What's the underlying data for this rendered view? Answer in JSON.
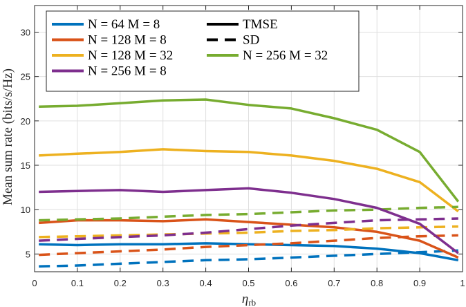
{
  "chart_data": {
    "type": "line",
    "title": "",
    "xlabel": "η",
    "xlabel_sub": "rb",
    "ylabel": "Mean sum rate (bits/s/Hz)",
    "xlim": [
      0,
      1
    ],
    "ylim": [
      3,
      33
    ],
    "xticks": [
      0,
      0.1,
      0.2,
      0.3,
      0.4,
      0.5,
      0.6,
      0.7,
      0.8,
      0.9,
      1
    ],
    "xtick_labels": [
      "0",
      "0.1",
      "0.2",
      "0.3",
      "0.4",
      "0.5",
      "0.6",
      "0.7",
      "0.8",
      "0.9",
      "1"
    ],
    "yticks": [
      5,
      10,
      15,
      20,
      25,
      30
    ],
    "ytick_labels": [
      "5",
      "10",
      "15",
      "20",
      "25",
      "30"
    ],
    "grid": true,
    "legend_position": "top-left",
    "x": [
      0.01,
      0.1,
      0.2,
      0.3,
      0.4,
      0.5,
      0.6,
      0.7,
      0.8,
      0.9,
      0.99
    ],
    "series": [
      {
        "name": "N = 64 M = 8",
        "method": "TMSE",
        "style": "solid",
        "color": "#0072BD",
        "values": [
          6.1,
          6.0,
          6.1,
          6.1,
          6.2,
          6.1,
          6.0,
          5.9,
          5.6,
          5.1,
          4.3
        ]
      },
      {
        "name": "N = 64 M = 8",
        "method": "SD",
        "style": "dashed",
        "color": "#0072BD",
        "values": [
          3.6,
          3.7,
          3.9,
          4.1,
          4.3,
          4.4,
          4.6,
          4.8,
          5.0,
          5.2,
          5.4
        ]
      },
      {
        "name": "N = 128 M = 8",
        "method": "TMSE",
        "style": "solid",
        "color": "#D95319",
        "values": [
          8.5,
          8.8,
          8.8,
          8.7,
          8.9,
          8.6,
          8.3,
          8.0,
          7.5,
          6.5,
          4.6
        ]
      },
      {
        "name": "N = 128 M = 8",
        "method": "SD",
        "style": "dashed",
        "color": "#D95319",
        "values": [
          4.9,
          5.1,
          5.3,
          5.5,
          5.8,
          6.0,
          6.2,
          6.5,
          6.8,
          7.0,
          7.1
        ]
      },
      {
        "name": "N = 128 M = 32",
        "method": "TMSE",
        "style": "solid",
        "color": "#EDB120",
        "values": [
          16.1,
          16.3,
          16.5,
          16.8,
          16.6,
          16.5,
          16.1,
          15.5,
          14.6,
          13.1,
          9.8
        ]
      },
      {
        "name": "N = 128 M = 32",
        "method": "SD",
        "style": "dashed",
        "color": "#EDB120",
        "values": [
          6.9,
          7.0,
          7.1,
          7.2,
          7.3,
          7.4,
          7.6,
          7.7,
          7.9,
          8.0,
          8.1
        ]
      },
      {
        "name": "N = 256 M = 32",
        "method": "TMSE",
        "style": "solid",
        "color": "#77AC30",
        "values": [
          21.6,
          21.7,
          22.0,
          22.3,
          22.4,
          21.8,
          21.4,
          20.3,
          19.0,
          16.5,
          10.9
        ]
      },
      {
        "name": "N = 256 M = 32",
        "method": "SD",
        "style": "dashed",
        "color": "#77AC30",
        "values": [
          8.8,
          8.9,
          9.0,
          9.2,
          9.4,
          9.5,
          9.7,
          9.9,
          10.0,
          10.2,
          10.3
        ]
      },
      {
        "name": "N = 256 M = 8",
        "method": "TMSE",
        "style": "solid",
        "color": "#7E2F8E",
        "values": [
          12.0,
          12.1,
          12.2,
          12.0,
          12.2,
          12.4,
          11.9,
          11.2,
          10.2,
          8.4,
          5.1
        ]
      },
      {
        "name": "N = 256 M = 8",
        "method": "SD",
        "style": "dashed",
        "color": "#7E2F8E",
        "values": [
          6.5,
          6.7,
          6.9,
          7.1,
          7.4,
          7.8,
          8.2,
          8.5,
          8.8,
          8.9,
          9.0
        ]
      }
    ],
    "legend": [
      {
        "label": "N = 64 M = 8",
        "color": "#0072BD",
        "style": "solid"
      },
      {
        "label": "TMSE",
        "color": "#000000",
        "style": "solid"
      },
      {
        "label": "N = 128 M = 8",
        "color": "#D95319",
        "style": "solid"
      },
      {
        "label": "SD",
        "color": "#000000",
        "style": "dashed"
      },
      {
        "label": "N = 128 M = 32",
        "color": "#EDB120",
        "style": "solid"
      },
      {
        "label": "N = 256 M = 32",
        "color": "#77AC30",
        "style": "solid"
      },
      {
        "label": "N = 256 M = 8",
        "color": "#7E2F8E",
        "style": "solid"
      }
    ]
  }
}
